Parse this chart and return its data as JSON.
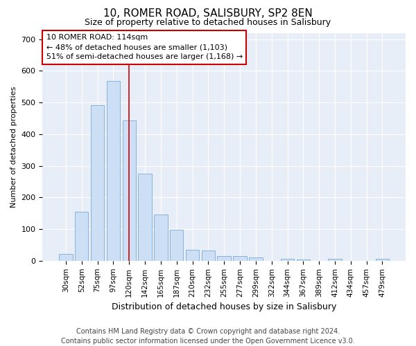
{
  "title": "10, ROMER ROAD, SALISBURY, SP2 8EN",
  "subtitle": "Size of property relative to detached houses in Salisbury",
  "xlabel": "Distribution of detached houses by size in Salisbury",
  "ylabel": "Number of detached properties",
  "footer1": "Contains HM Land Registry data © Crown copyright and database right 2024.",
  "footer2": "Contains public sector information licensed under the Open Government Licence v3.0.",
  "annotation_line1": "10 ROMER ROAD: 114sqm",
  "annotation_line2": "← 48% of detached houses are smaller (1,103)",
  "annotation_line3": "51% of semi-detached houses are larger (1,168) →",
  "categories": [
    "30sqm",
    "52sqm",
    "75sqm",
    "97sqm",
    "120sqm",
    "142sqm",
    "165sqm",
    "187sqm",
    "210sqm",
    "232sqm",
    "255sqm",
    "277sqm",
    "299sqm",
    "322sqm",
    "344sqm",
    "367sqm",
    "389sqm",
    "412sqm",
    "434sqm",
    "457sqm",
    "479sqm"
  ],
  "values": [
    22,
    155,
    492,
    567,
    443,
    275,
    145,
    98,
    35,
    33,
    16,
    15,
    11,
    0,
    6,
    5,
    0,
    6,
    0,
    0,
    7
  ],
  "bar_color": "#ccdff5",
  "bar_edge_color": "#7aaad4",
  "vline_x": 4.0,
  "vline_color": "#cc0000",
  "annotation_box_color": "#cc0000",
  "background_color": "#ffffff",
  "plot_bg_color": "#e8eef8",
  "ylim": [
    0,
    720
  ],
  "yticks": [
    0,
    100,
    200,
    300,
    400,
    500,
    600,
    700
  ],
  "title_fontsize": 11,
  "subtitle_fontsize": 9,
  "xlabel_fontsize": 9,
  "ylabel_fontsize": 8,
  "tick_fontsize": 8,
  "xtick_fontsize": 7.5,
  "annotation_fontsize": 8,
  "footer_fontsize": 7
}
